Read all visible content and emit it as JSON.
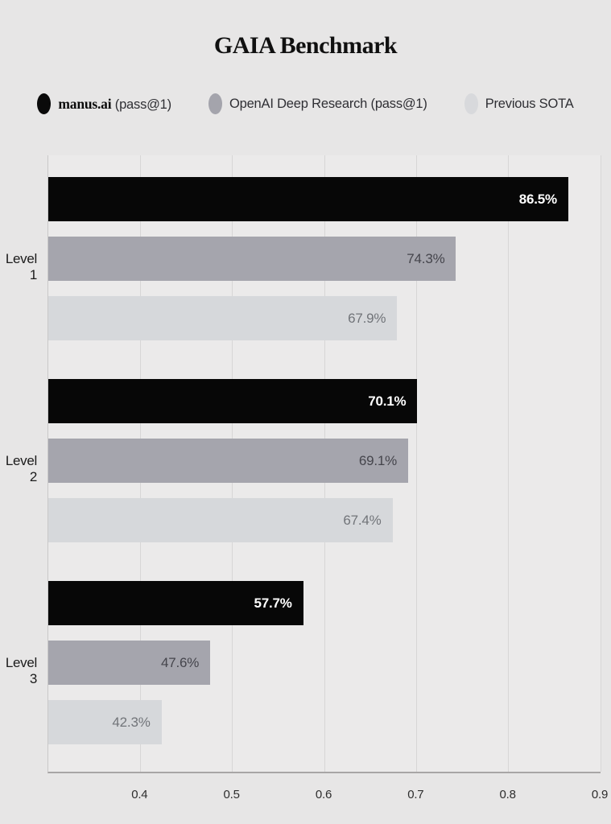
{
  "title": "GAIA Benchmark",
  "legend": {
    "items": [
      {
        "brand": "manus.ai",
        "rest": " (pass@1)",
        "color": "#0a0a0a"
      },
      {
        "brand": "",
        "rest": "OpenAI Deep Research (pass@1)",
        "color": "#a4a4ac"
      },
      {
        "brand": "",
        "rest": "Previous SOTA",
        "color": "#d8d9dc"
      }
    ]
  },
  "chart_data": {
    "type": "bar",
    "orientation": "horizontal",
    "title": "GAIA Benchmark",
    "categories": [
      "Level 1",
      "Level 2",
      "Level 3"
    ],
    "series": [
      {
        "name": "manus.ai (pass@1)",
        "values": [
          86.5,
          70.1,
          57.7
        ],
        "color": "#070707",
        "label_color": "#ffffff",
        "label_weight": "700"
      },
      {
        "name": "OpenAI Deep Research (pass@1)",
        "values": [
          74.3,
          69.1,
          47.6
        ],
        "color": "#a5a5ad",
        "label_color": "#45454c",
        "label_weight": "400"
      },
      {
        "name": "Previous SOTA",
        "values": [
          67.9,
          67.4,
          42.3
        ],
        "color": "#d6d8db",
        "label_color": "#717479",
        "label_weight": "400"
      }
    ],
    "value_suffix": "%",
    "xlabel": "",
    "ylabel": "",
    "x_ticks": [
      "0.4",
      "0.5",
      "0.6",
      "0.7",
      "0.8",
      "0.9"
    ],
    "x_tick_values": [
      0.4,
      0.5,
      0.6,
      0.7,
      0.8,
      0.9
    ],
    "xlim": [
      0.3,
      0.9
    ],
    "grid": "vertical-only",
    "legend_position": "top-center"
  },
  "style_colors": {
    "page_background": "#e7e6e6",
    "plot_background": "#ebeaea",
    "gridline": "#d7d6d6",
    "axis_line": "#a8a6a6"
  }
}
